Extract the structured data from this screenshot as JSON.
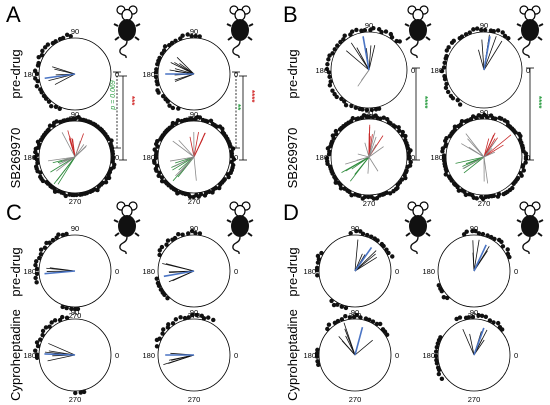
{
  "panels": [
    {
      "letter": "A",
      "rows": [
        "pre-drug",
        "SB269970"
      ],
      "ticks": [
        "90",
        "180",
        "270",
        "0"
      ],
      "stats": [
        {
          "text": "***",
          "color": "#d32f2f"
        },
        {
          "text": "p = 0.069",
          "color": "#2e9e45"
        },
        {
          "text": "****",
          "color": "#d32f2f"
        },
        {
          "text": "**",
          "color": "#2e9e45"
        }
      ]
    },
    {
      "letter": "B",
      "rows": [
        "pre-drug",
        "SB269970"
      ],
      "ticks": [
        "90",
        "180",
        "270",
        "0"
      ],
      "stats": [
        {
          "text": "****",
          "color": "#2e9e45"
        },
        {
          "text": "****",
          "color": "#2e9e45"
        }
      ]
    },
    {
      "letter": "C",
      "rows": [
        "pre-drug",
        "Cyproheptadine"
      ],
      "ticks": [
        "90",
        "180",
        "270",
        "0"
      ],
      "stats": []
    },
    {
      "letter": "D",
      "rows": [
        "pre-drug",
        "Cyproheptadine"
      ],
      "ticks": [
        "90",
        "180",
        "270",
        "0"
      ],
      "stats": []
    }
  ],
  "colors": {
    "blue": "#4a74c4",
    "red": "#c62828",
    "green": "#2e8b3c",
    "black": "#111111",
    "grey": "#8a8a8a"
  },
  "icons": [
    "mouse-icon"
  ]
}
